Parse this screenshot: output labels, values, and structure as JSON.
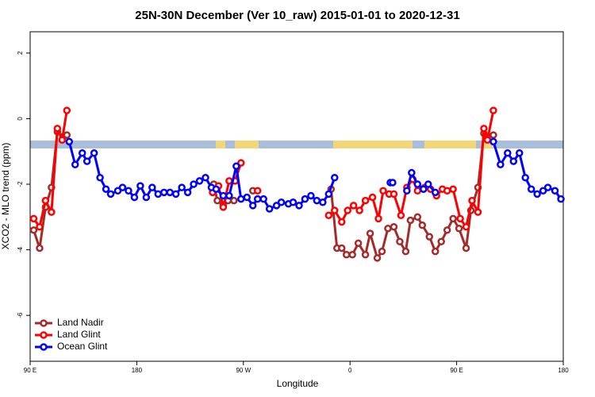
{
  "chart_data": {
    "type": "line",
    "title": "25N-30N December (Ver 10_raw)   2015-01-01 to 2020-12-31",
    "x_label": "Longitude",
    "y_label": "XCO2 - MLO trend (ppm)",
    "xlim": [
      90,
      540
    ],
    "xticks": [
      {
        "value": 90,
        "label": "90 E"
      },
      180,
      {
        "value": 270,
        "label": "90 W"
      },
      {
        "value": 360,
        "label": "0"
      },
      {
        "value": 450,
        "label": "90 E"
      },
      {
        "value": 540,
        "label": "180"
      }
    ],
    "ylim": [
      -7.4,
      2.65
    ],
    "yticks": [
      -6,
      -4,
      -2,
      0,
      2
    ],
    "legend": "bottom-left",
    "series": [
      {
        "name": "Land Nadir",
        "color": "#a52a2a",
        "x": [
          93,
          98,
          103,
          108,
          113,
          118,
          121,
          null,
          245,
          248,
          253,
          257,
          262,
          null,
          278,
          null,
          344,
          349,
          353,
          357,
          362,
          367,
          373,
          377,
          383,
          387,
          392,
          397,
          402,
          407,
          411,
          417,
          421,
          427,
          432,
          437,
          442,
          447,
          452,
          458,
          462,
          468,
          473,
          476,
          481
        ],
        "values": [
          -3.4,
          -3.95,
          -2.7,
          -2.1,
          -0.4,
          -0.55,
          -0.5,
          null,
          -2.0,
          -2.5,
          -2.65,
          -2.5,
          -2.5,
          null,
          -2.2,
          null,
          -2.15,
          -3.95,
          -3.95,
          -4.15,
          -4.15,
          -3.8,
          -4.15,
          -3.5,
          -4.25,
          -4.05,
          -3.35,
          -3.3,
          -3.75,
          -4.05,
          -3.1,
          -3.0,
          -3.25,
          -3.6,
          -4.05,
          -3.75,
          -3.4,
          -3.05,
          -3.35,
          -3.95,
          -2.8,
          -2.1,
          -0.45,
          -0.55,
          -0.5
        ]
      },
      {
        "name": "Land Glint",
        "color": "#ff0000",
        "x": [
          93,
          98,
          103,
          108,
          113,
          117,
          121,
          null,
          244,
          249,
          253,
          258,
          263,
          268,
          null,
          282,
          null,
          342,
          347,
          353,
          358,
          363,
          368,
          373,
          379,
          384,
          388,
          393,
          397,
          403,
          408,
          413,
          417,
          423,
          428,
          433,
          438,
          442,
          447,
          453,
          458,
          463,
          468,
          473,
          476,
          481
        ],
        "values": [
          -3.05,
          -3.3,
          -2.5,
          -2.85,
          -0.3,
          -0.65,
          0.25,
          null,
          -2.25,
          -2.05,
          -2.7,
          -1.9,
          -1.9,
          -1.35,
          null,
          -2.2,
          null,
          -2.95,
          -2.8,
          -3.15,
          -2.8,
          -2.65,
          -2.8,
          -2.5,
          -2.4,
          -3.05,
          -2.2,
          -2.3,
          -2.3,
          -2.95,
          -2.1,
          -1.85,
          -2.2,
          -2.1,
          -2.15,
          -2.35,
          -2.15,
          -2.2,
          -2.15,
          -3.05,
          -3.3,
          -2.5,
          -2.85,
          -0.3,
          -0.65,
          0.25
        ]
      },
      {
        "name": "Ocean Glint",
        "color": "#0000ff",
        "x": [
          123,
          128,
          134,
          138,
          144,
          149,
          154,
          158,
          164,
          168,
          173,
          178,
          183,
          188,
          193,
          198,
          203,
          208,
          213,
          218,
          223,
          228,
          233,
          238,
          243,
          247,
          253,
          258,
          264,
          268,
          273,
          278,
          282,
          287,
          292,
          298,
          302,
          308,
          312,
          317,
          322,
          327,
          332,
          337,
          342,
          347,
          null,
          394,
          396,
          null,
          408,
          412,
          417,
          422,
          426,
          432,
          null,
          481,
          487,
          493,
          498,
          503,
          508,
          513,
          518,
          523,
          527,
          533,
          538
        ],
        "values": [
          -0.7,
          -1.4,
          -1.05,
          -1.3,
          -1.05,
          -1.8,
          -2.15,
          -2.3,
          -2.2,
          -2.1,
          -2.2,
          -2.4,
          -2.05,
          -2.4,
          -2.1,
          -2.3,
          -2.25,
          -2.25,
          -2.3,
          -2.1,
          -2.25,
          -2.0,
          -1.9,
          -1.8,
          -2.1,
          -2.15,
          -2.35,
          -2.35,
          -1.45,
          -2.45,
          -2.4,
          -2.65,
          -2.45,
          -2.45,
          -2.75,
          -2.65,
          -2.55,
          -2.6,
          -2.55,
          -2.65,
          -2.45,
          -2.35,
          -2.5,
          -2.55,
          -2.3,
          -1.8,
          null,
          -1.95,
          -1.95,
          null,
          -2.2,
          -1.65,
          -2.0,
          -2.15,
          -2.0,
          -2.25,
          null,
          -0.7,
          -1.4,
          -1.05,
          -1.3,
          -1.05,
          -1.8,
          -2.15,
          -2.3,
          -2.2,
          -2.1,
          -2.2,
          -2.45
        ]
      }
    ]
  }
}
